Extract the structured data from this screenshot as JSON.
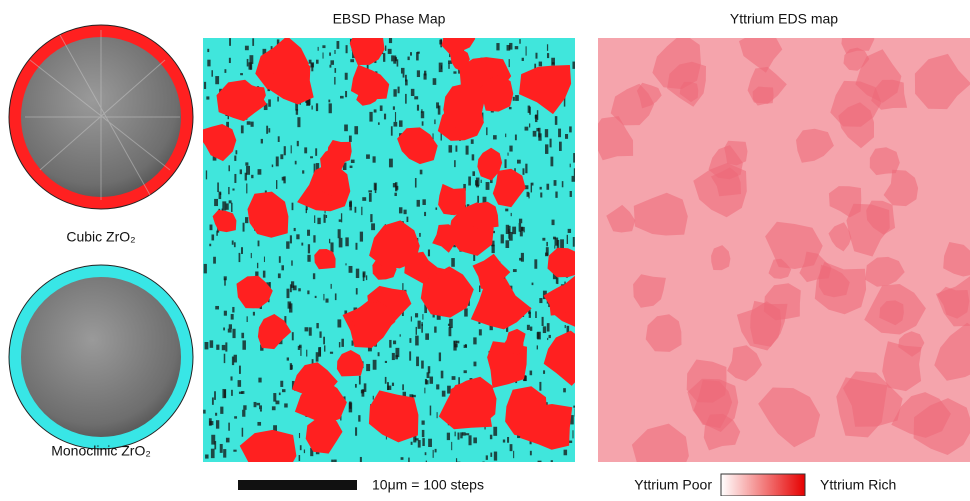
{
  "figure": {
    "ebsd_title": "EBSD Phase Map",
    "eds_title": "Yttrium EDS map",
    "patterns": [
      {
        "label": "Cubic ZrO₂",
        "color": "#ff2020"
      },
      {
        "label": "Monoclinic ZrO₂",
        "color": "#38e6e6"
      }
    ],
    "scale_bar": "10μm = 100 steps",
    "legend": {
      "low": "Yttrium Poor",
      "high": "Yttrium Rich"
    }
  }
}
